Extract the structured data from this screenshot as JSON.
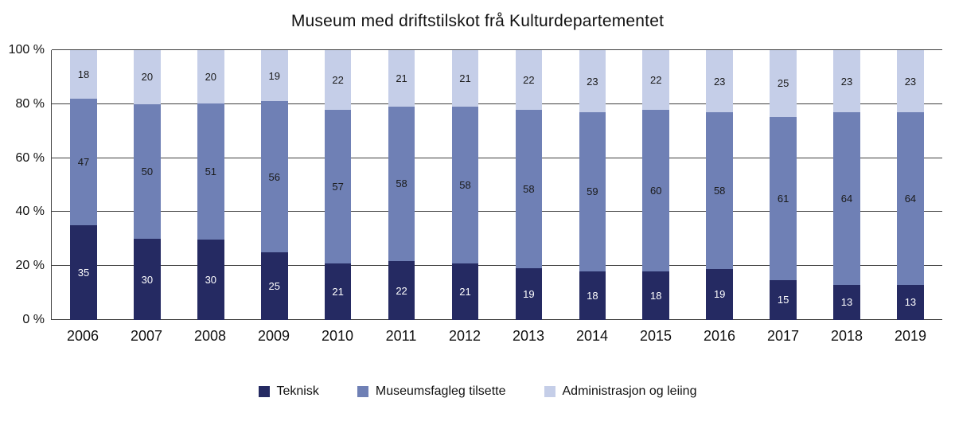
{
  "chart_data": {
    "type": "bar",
    "stacked": true,
    "percent": true,
    "title": "Museum med driftstilskot frå Kulturdepartementet",
    "categories": [
      "2006",
      "2007",
      "2008",
      "2009",
      "2010",
      "2011",
      "2012",
      "2013",
      "2014",
      "2015",
      "2016",
      "2017",
      "2018",
      "2019"
    ],
    "series": [
      {
        "name": "Teknisk",
        "color": "#252a62",
        "label_color": "#ffffff",
        "values": [
          35,
          30,
          30,
          25,
          21,
          22,
          21,
          19,
          18,
          18,
          19,
          15,
          13,
          13
        ]
      },
      {
        "name": "Museumsfagleg tilsette",
        "color": "#6f80b5",
        "label_color": "#1a1a1a",
        "values": [
          47,
          50,
          51,
          56,
          57,
          58,
          58,
          58,
          59,
          60,
          58,
          61,
          64,
          64
        ]
      },
      {
        "name": "Administrasjon og leiing",
        "color": "#c5cee8",
        "label_color": "#1a1a1a",
        "values": [
          18,
          20,
          20,
          19,
          22,
          21,
          21,
          22,
          23,
          22,
          23,
          25,
          23,
          23
        ]
      }
    ],
    "y_ticks": [
      {
        "value": 0,
        "label": "0 %"
      },
      {
        "value": 20,
        "label": "20 %"
      },
      {
        "value": 40,
        "label": "40 %"
      },
      {
        "value": 60,
        "label": "60 %"
      },
      {
        "value": 80,
        "label": "80 %"
      },
      {
        "value": 100,
        "label": "100 %"
      }
    ],
    "ylim": [
      0,
      100
    ],
    "grid": "horizontal",
    "legend_position": "bottom"
  }
}
